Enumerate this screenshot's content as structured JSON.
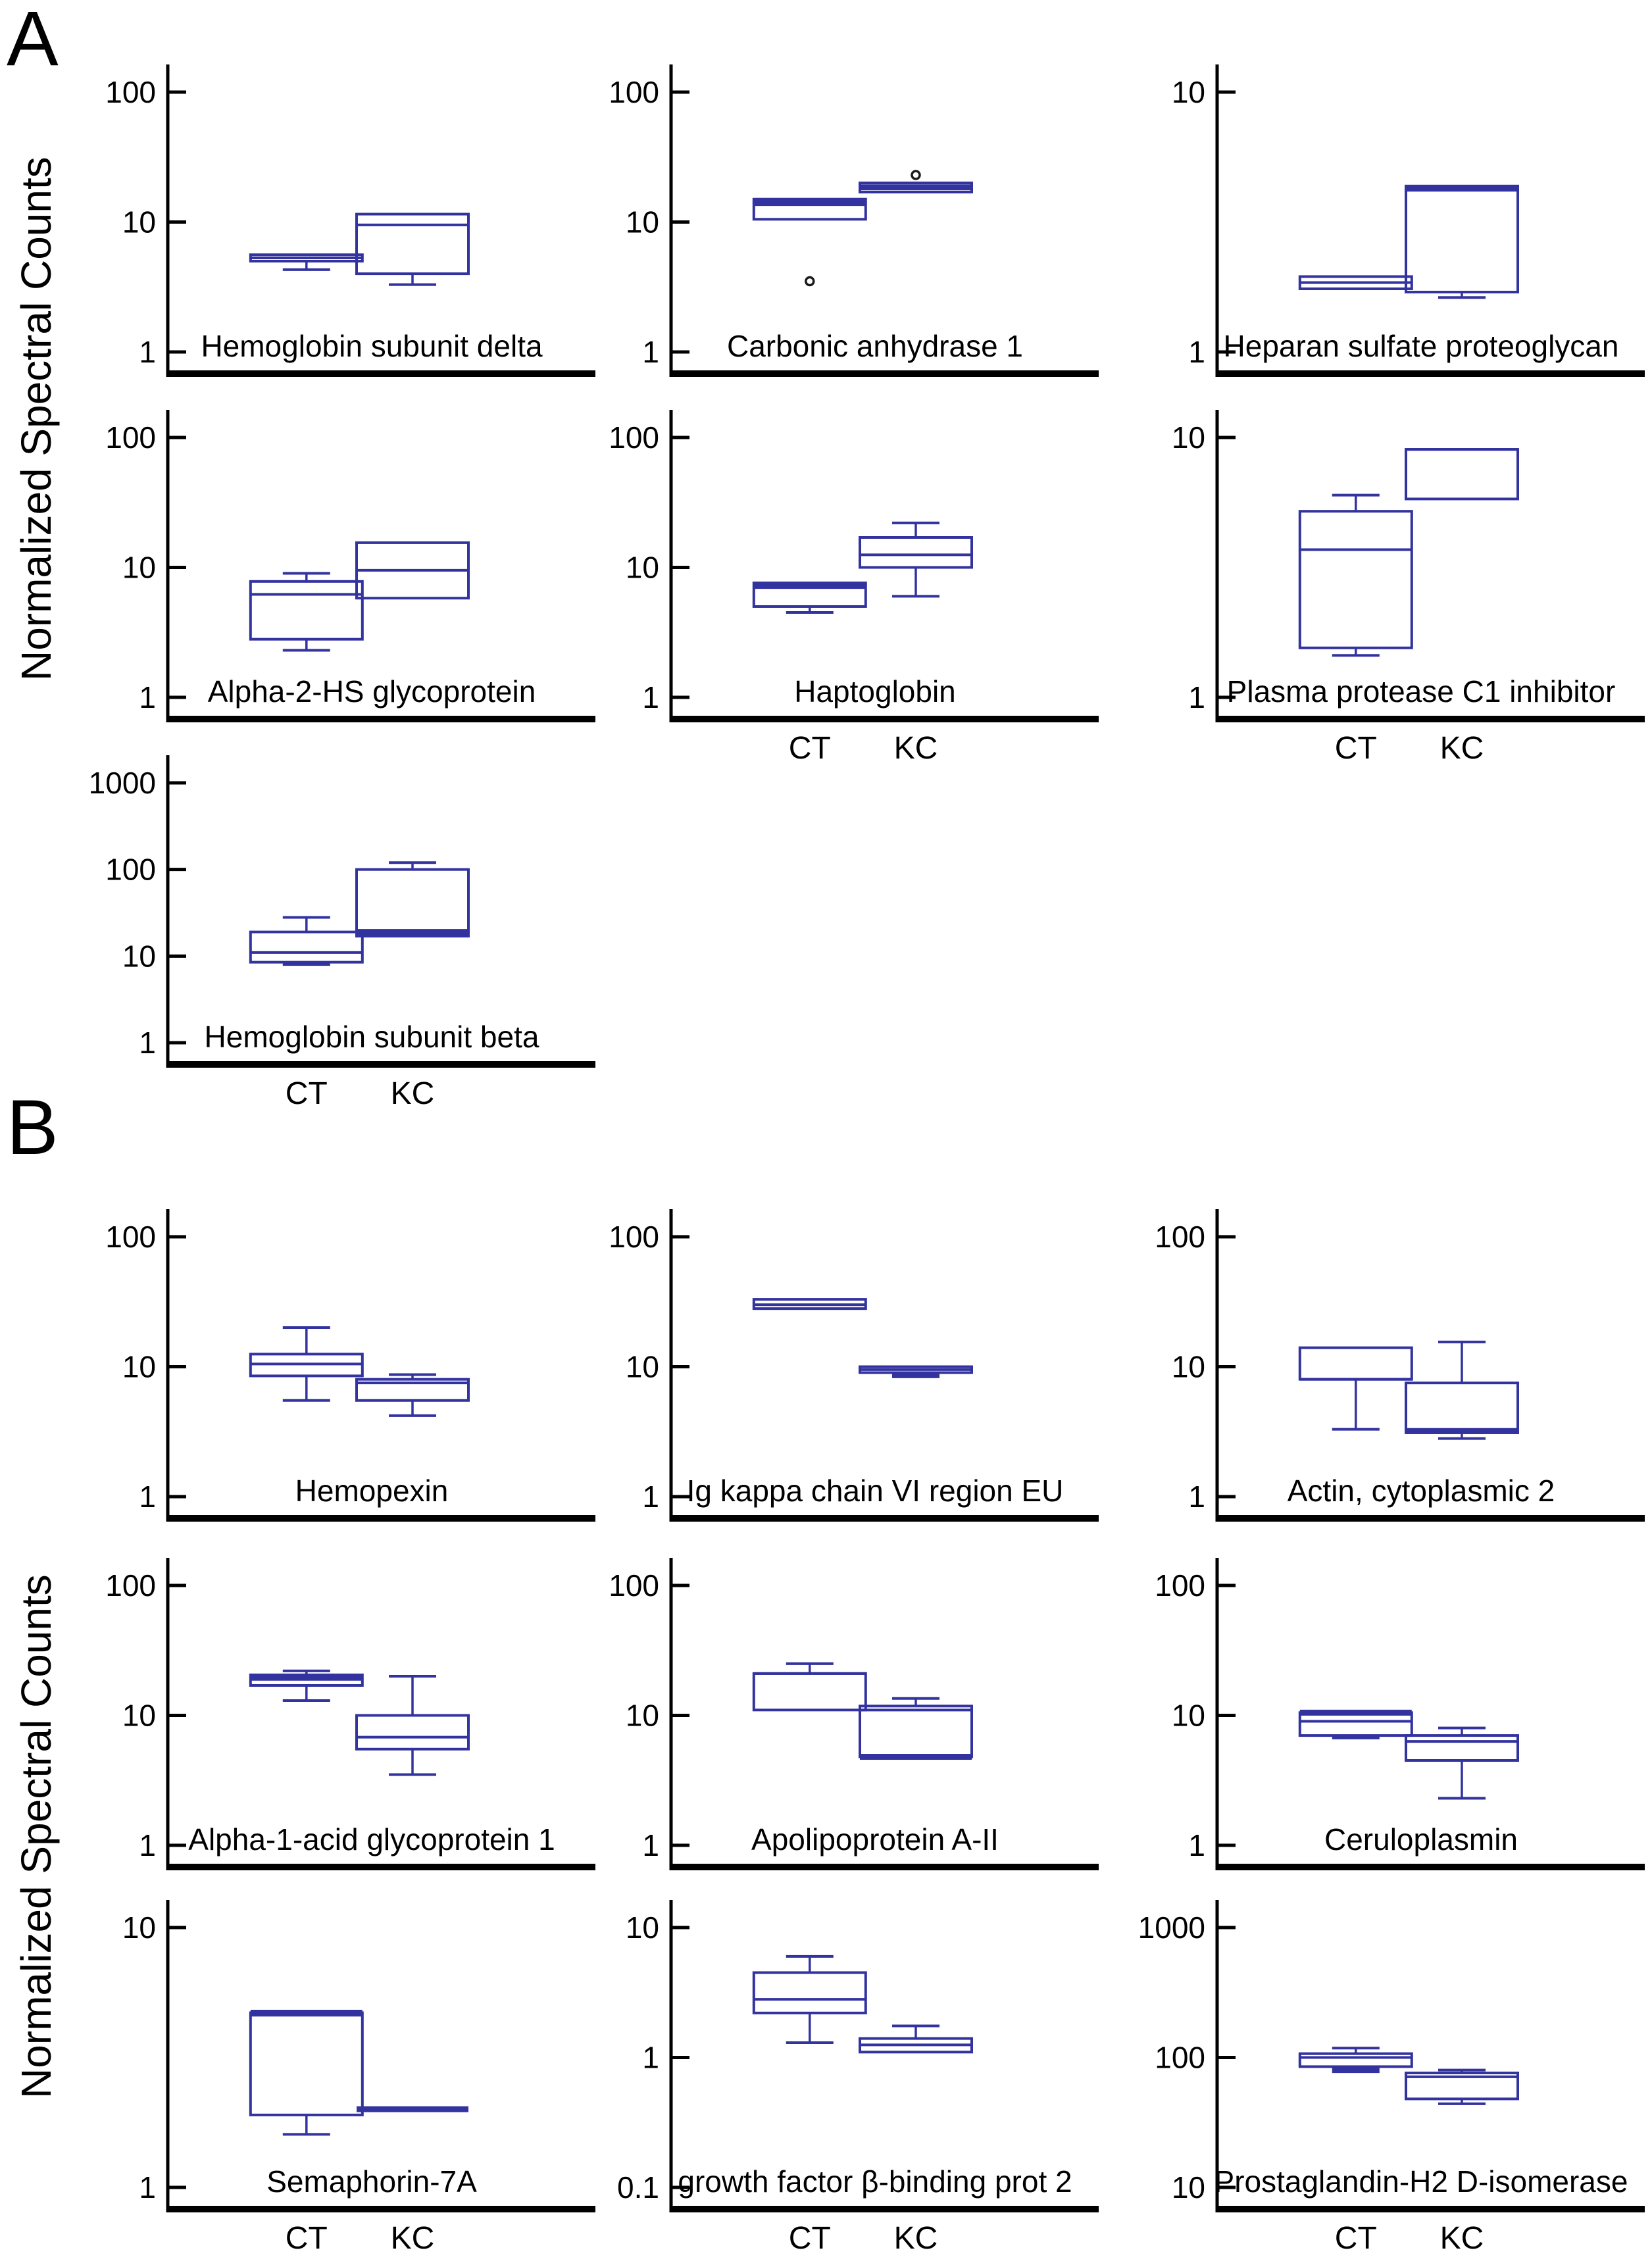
{
  "figure": {
    "panel_a_label": "A",
    "panel_b_label": "B",
    "y_axis_label": "Normalized Spectral Counts",
    "group_labels": [
      "CT",
      "KC"
    ],
    "box_color": "#3333a0",
    "axis_color": "#000000",
    "outlier_color": "#1a1a1a"
  },
  "chart_data": [
    {
      "type": "box",
      "id": "hemoglobin-subunit-delta",
      "panel": "A",
      "row": 0,
      "col": 0,
      "title": "Hemoglobin subunit  delta",
      "ylim": [
        1,
        100
      ],
      "yticks": [
        100,
        10,
        1
      ],
      "show_x_labels": false,
      "boxes": {
        "ct": {
          "q1": 5.0,
          "median": 5.3,
          "q3": 5.6,
          "whisker_low": 4.3,
          "whisker_high": null,
          "outliers": [],
          "bold": []
        },
        "kc": {
          "q1": 4.0,
          "median": 9.5,
          "q3": 11.5,
          "whisker_low": 3.3,
          "whisker_high": null,
          "outliers": [],
          "bold": []
        }
      }
    },
    {
      "type": "box",
      "id": "carbonic-anhydrase-1",
      "panel": "A",
      "row": 0,
      "col": 1,
      "title": "Carbonic anhydrase 1",
      "ylim": [
        1,
        100
      ],
      "yticks": [
        100,
        10,
        1
      ],
      "show_x_labels": false,
      "boxes": {
        "ct": {
          "q1": 10.5,
          "median": 14.0,
          "q3": 15.0,
          "whisker_low": null,
          "whisker_high": null,
          "outliers": [
            3.5
          ],
          "bold": [
            "median"
          ]
        },
        "kc": {
          "q1": 17.0,
          "median": 18.5,
          "q3": 20.0,
          "whisker_low": null,
          "whisker_high": null,
          "outliers": [
            23
          ],
          "bold": [
            "median"
          ]
        }
      }
    },
    {
      "type": "box",
      "id": "heparan-sulfate-proteoglycan",
      "panel": "A",
      "row": 0,
      "col": 2,
      "title": "Heparan sulfate proteoglycan",
      "ylim": [
        1,
        10
      ],
      "yticks": [
        10,
        1
      ],
      "show_x_labels": false,
      "boxes": {
        "ct": {
          "q1": 1.75,
          "median": 1.85,
          "q3": 1.95,
          "whisker_low": null,
          "whisker_high": null,
          "outliers": [],
          "bold": []
        },
        "kc": {
          "q1": 1.7,
          "median": 4.25,
          "q3": 4.35,
          "whisker_low": 1.62,
          "whisker_high": null,
          "outliers": [],
          "bold": [
            "median"
          ]
        }
      }
    },
    {
      "type": "box",
      "id": "alpha-2-hs-glycoprotein",
      "panel": "A",
      "row": 1,
      "col": 0,
      "title": "Alpha-2-HS glycoprotein",
      "ylim": [
        1,
        100
      ],
      "yticks": [
        100,
        10,
        1
      ],
      "show_x_labels": false,
      "boxes": {
        "ct": {
          "q1": 2.8,
          "median": 6.2,
          "q3": 7.8,
          "whisker_low": 2.3,
          "whisker_high": 9.0,
          "outliers": [],
          "bold": []
        },
        "kc": {
          "q1": 5.8,
          "median": 9.5,
          "q3": 15.5,
          "whisker_low": null,
          "whisker_high": null,
          "outliers": [],
          "bold": []
        }
      }
    },
    {
      "type": "box",
      "id": "haptoglobin",
      "panel": "A",
      "row": 1,
      "col": 1,
      "title": "Haptoglobin",
      "ylim": [
        1,
        100
      ],
      "yticks": [
        100,
        10,
        1
      ],
      "show_x_labels": true,
      "boxes": {
        "ct": {
          "q1": 5.0,
          "median": 7.2,
          "q3": 7.6,
          "whisker_low": 4.5,
          "whisker_high": null,
          "outliers": [],
          "bold": [
            "median"
          ]
        },
        "kc": {
          "q1": 10.0,
          "median": 12.5,
          "q3": 17.0,
          "whisker_low": 6.0,
          "whisker_high": 22.0,
          "outliers": [],
          "bold": []
        }
      }
    },
    {
      "type": "box",
      "id": "plasma-protease-c1-inhibitor",
      "panel": "A",
      "row": 1,
      "col": 2,
      "title": "Plasma protease C1 inhibitor",
      "ylim": [
        1,
        10
      ],
      "yticks": [
        10,
        1
      ],
      "show_x_labels": true,
      "boxes": {
        "ct": {
          "q1": 1.55,
          "median": 3.7,
          "q3": 5.2,
          "whisker_low": 1.45,
          "whisker_high": 6.0,
          "outliers": [],
          "bold": []
        },
        "kc": {
          "q1": 5.8,
          "median": 9.0,
          "q3": 9.0,
          "whisker_low": null,
          "whisker_high": null,
          "outliers": [],
          "bold": []
        }
      }
    },
    {
      "type": "box",
      "id": "hemoglobin-subunit-beta",
      "panel": "A",
      "row": 2,
      "col": 0,
      "title": "Hemoglobin subunit  beta",
      "ylim": [
        1,
        1000
      ],
      "yticks": [
        1000,
        100,
        10,
        1
      ],
      "show_x_labels": true,
      "boxes": {
        "ct": {
          "q1": 8.5,
          "median": 11.0,
          "q3": 19.0,
          "whisker_low": 8.0,
          "whisker_high": 28.0,
          "outliers": [],
          "bold": []
        },
        "kc": {
          "q1": 17.0,
          "median": 19.0,
          "q3": 100.0,
          "whisker_low": null,
          "whisker_high": 120.0,
          "outliers": [],
          "bold": [
            "median"
          ]
        }
      }
    },
    {
      "type": "box",
      "id": "hemopexin",
      "panel": "B",
      "row": 0,
      "col": 0,
      "title": "Hemopexin",
      "ylim": [
        1,
        100
      ],
      "yticks": [
        100,
        10,
        1
      ],
      "show_x_labels": false,
      "boxes": {
        "ct": {
          "q1": 8.5,
          "median": 10.5,
          "q3": 12.5,
          "whisker_low": 5.5,
          "whisker_high": 20.0,
          "outliers": [],
          "bold": []
        },
        "kc": {
          "q1": 5.5,
          "median": 7.5,
          "q3": 8.0,
          "whisker_low": 4.2,
          "whisker_high": 8.7,
          "outliers": [],
          "bold": []
        }
      }
    },
    {
      "type": "box",
      "id": "ig-kappa-chain-vi-region-eu",
      "panel": "B",
      "row": 0,
      "col": 1,
      "title": "Ig kappa chain VI region EU",
      "ylim": [
        1,
        100
      ],
      "yticks": [
        100,
        10,
        1
      ],
      "show_x_labels": false,
      "boxes": {
        "ct": {
          "q1": 28.0,
          "median": 30.0,
          "q3": 33.0,
          "whisker_low": null,
          "whisker_high": null,
          "outliers": [],
          "bold": []
        },
        "kc": {
          "q1": 9.0,
          "median": 9.5,
          "q3": 10.0,
          "whisker_low": 8.6,
          "whisker_high": null,
          "outliers": [],
          "bold": [
            "wl"
          ]
        }
      }
    },
    {
      "type": "box",
      "id": "actin-cytoplasmic-2",
      "panel": "B",
      "row": 0,
      "col": 2,
      "title": "Actin, cytoplasmic 2",
      "ylim": [
        1,
        100
      ],
      "yticks": [
        100,
        10,
        1
      ],
      "show_x_labels": false,
      "boxes": {
        "ct": {
          "q1": 8.0,
          "median": 8.0,
          "q3": 14.0,
          "whisker_low": 3.3,
          "whisker_high": null,
          "outliers": [],
          "bold": []
        },
        "kc": {
          "q1": 3.1,
          "median": 3.2,
          "q3": 7.5,
          "whisker_low": 2.8,
          "whisker_high": 15.5,
          "outliers": [],
          "bold": [
            "median"
          ]
        }
      }
    },
    {
      "type": "box",
      "id": "alpha-1-acid-glycoprotein-1",
      "panel": "B",
      "row": 1,
      "col": 0,
      "title": "Alpha-1-acid glycoprotein 1",
      "ylim": [
        1,
        100
      ],
      "yticks": [
        100,
        10,
        1
      ],
      "show_x_labels": false,
      "boxes": {
        "ct": {
          "q1": 17.0,
          "median": 19.5,
          "q3": 20.5,
          "whisker_low": 13.0,
          "whisker_high": 22.0,
          "outliers": [],
          "bold": [
            "median"
          ]
        },
        "kc": {
          "q1": 5.5,
          "median": 6.8,
          "q3": 10.0,
          "whisker_low": 3.5,
          "whisker_high": 20.0,
          "outliers": [],
          "bold": []
        }
      }
    },
    {
      "type": "box",
      "id": "apolipoprotein-a-ii",
      "panel": "B",
      "row": 1,
      "col": 1,
      "title": "Apolipoprotein A-II",
      "ylim": [
        1,
        100
      ],
      "yticks": [
        100,
        10,
        1
      ],
      "show_x_labels": false,
      "boxes": {
        "ct": {
          "q1": 11.0,
          "median": 21.0,
          "q3": 21.0,
          "whisker_low": null,
          "whisker_high": 25.0,
          "outliers": [],
          "bold": []
        },
        "kc": {
          "q1": 4.8,
          "median": 11.0,
          "q3": 11.8,
          "whisker_low": null,
          "whisker_high": 13.5,
          "outliers": [],
          "bold": [
            "bottom"
          ]
        }
      }
    },
    {
      "type": "box",
      "id": "ceruloplasmin",
      "panel": "B",
      "row": 1,
      "col": 2,
      "title": "Ceruloplasmin",
      "ylim": [
        1,
        100
      ],
      "yticks": [
        100,
        10,
        1
      ],
      "show_x_labels": false,
      "boxes": {
        "ct": {
          "q1": 7.0,
          "median": 9.0,
          "q3": 10.5,
          "whisker_low": 6.7,
          "whisker_high": null,
          "outliers": [],
          "bold": [
            "top"
          ]
        },
        "kc": {
          "q1": 4.5,
          "median": 6.3,
          "q3": 7.0,
          "whisker_low": 2.3,
          "whisker_high": 8.0,
          "outliers": [],
          "bold": []
        }
      }
    },
    {
      "type": "box",
      "id": "semaphorin-7a",
      "panel": "B",
      "row": 2,
      "col": 0,
      "title": "Semaphorin-7A",
      "ylim": [
        1,
        10
      ],
      "yticks": [
        10,
        1
      ],
      "show_x_labels": true,
      "boxes": {
        "ct": {
          "q1": 1.9,
          "median": 4.6,
          "q3": 4.7,
          "whisker_low": 1.6,
          "whisker_high": null,
          "outliers": [],
          "bold": [
            "top"
          ]
        },
        "kc": {
          "q1": 2.0,
          "median": 2.0,
          "q3": 2.0,
          "whisker_low": null,
          "whisker_high": null,
          "outliers": [],
          "bold": [
            "median"
          ]
        }
      }
    },
    {
      "type": "box",
      "id": "growth-factor-b-binding-prot-2",
      "panel": "B",
      "row": 2,
      "col": 1,
      "title": "growth factor β-binding prot 2",
      "ylim": [
        0.1,
        10
      ],
      "yticks": [
        10,
        1,
        0.1
      ],
      "show_x_labels": true,
      "boxes": {
        "ct": {
          "q1": 2.2,
          "median": 2.8,
          "q3": 4.5,
          "whisker_low": 1.3,
          "whisker_high": 6.0,
          "outliers": [],
          "bold": []
        },
        "kc": {
          "q1": 1.1,
          "median": 1.25,
          "q3": 1.4,
          "whisker_low": null,
          "whisker_high": 1.75,
          "outliers": [],
          "bold": []
        }
      }
    },
    {
      "type": "box",
      "id": "prostaglandin-h2-d-isomerase",
      "panel": "B",
      "row": 2,
      "col": 2,
      "title": "Prostaglandin-H2 D-isomerase",
      "ylim": [
        10,
        1000
      ],
      "yticks": [
        1000,
        100,
        10
      ],
      "show_x_labels": true,
      "boxes": {
        "ct": {
          "q1": 85.0,
          "median": 100.0,
          "q3": 107.0,
          "whisker_low": 80.0,
          "whisker_high": 118.0,
          "outliers": [],
          "bold": [
            "wl"
          ]
        },
        "kc": {
          "q1": 48.0,
          "median": 71.0,
          "q3": 76.0,
          "whisker_low": 44.0,
          "whisker_high": 80.0,
          "outliers": [],
          "bold": []
        }
      }
    }
  ]
}
